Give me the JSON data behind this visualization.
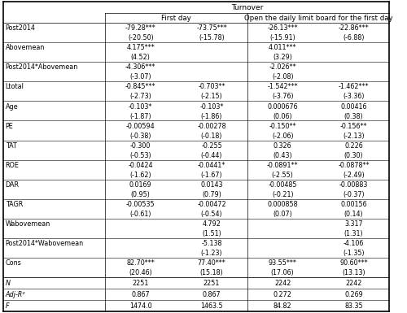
{
  "title": "Turnover",
  "col_group1": "First day",
  "col_group2": "Open the daily limit board for the first day",
  "rows": [
    {
      "label": "Post2014",
      "values": [
        "-79.28***",
        "-73.75***",
        "-26.13***",
        "-22.86***"
      ],
      "is_stat": false
    },
    {
      "label": "",
      "values": [
        "(-20.50)",
        "(-15.78)",
        "(-15.91)",
        "(-6.88)"
      ],
      "is_stat": true
    },
    {
      "label": "Abovemean",
      "values": [
        "4.175***",
        "",
        "4.011***",
        ""
      ],
      "is_stat": false
    },
    {
      "label": "",
      "values": [
        "(4.52)",
        "",
        "(3.29)",
        ""
      ],
      "is_stat": true
    },
    {
      "label": "Post2014*Abovemean",
      "values": [
        "-4.306***",
        "",
        "-2.026**",
        ""
      ],
      "is_stat": false
    },
    {
      "label": "",
      "values": [
        "(-3.07)",
        "",
        "(-2.08)",
        ""
      ],
      "is_stat": true
    },
    {
      "label": "Ltotal",
      "values": [
        "-0.845***",
        "-0.703**",
        "-1.542***",
        "-1.462***"
      ],
      "is_stat": false
    },
    {
      "label": "",
      "values": [
        "(-2.73)",
        "(-2.15)",
        "(-3.76)",
        "(-3.36)"
      ],
      "is_stat": true
    },
    {
      "label": "Age",
      "values": [
        "-0.103*",
        "-0.103*",
        "0.000676",
        "0.00416"
      ],
      "is_stat": false
    },
    {
      "label": "",
      "values": [
        "(-1.87)",
        "(-1.86)",
        "(0.06)",
        "(0.38)"
      ],
      "is_stat": true
    },
    {
      "label": "PE",
      "values": [
        "-0.00594",
        "-0.00278",
        "-0.150**",
        "-0.156**"
      ],
      "is_stat": false
    },
    {
      "label": "",
      "values": [
        "(-0.38)",
        "(-0.18)",
        "(-2.06)",
        "(-2.13)"
      ],
      "is_stat": true
    },
    {
      "label": "TAT",
      "values": [
        "-0.300",
        "-0.255",
        "0.326",
        "0.226"
      ],
      "is_stat": false
    },
    {
      "label": "",
      "values": [
        "(-0.53)",
        "(-0.44)",
        "(0.43)",
        "(0.30)"
      ],
      "is_stat": true
    },
    {
      "label": "ROE",
      "values": [
        "-0.0424",
        "-0.0441*",
        "-0.0891**",
        "-0.0878**"
      ],
      "is_stat": false
    },
    {
      "label": "",
      "values": [
        "(-1.62)",
        "(-1.67)",
        "(-2.55)",
        "(-2.49)"
      ],
      "is_stat": true
    },
    {
      "label": "DAR",
      "values": [
        "0.0169",
        "0.0143",
        "-0.00485",
        "-0.00883"
      ],
      "is_stat": false
    },
    {
      "label": "",
      "values": [
        "(0.95)",
        "(0.79)",
        "(-0.21)",
        "(-0.37)"
      ],
      "is_stat": true
    },
    {
      "label": "TAGR",
      "values": [
        "-0.00535",
        "-0.00472",
        "0.000858",
        "0.00156"
      ],
      "is_stat": false
    },
    {
      "label": "",
      "values": [
        "(-0.61)",
        "(-0.54)",
        "(0.07)",
        "(0.14)"
      ],
      "is_stat": true
    },
    {
      "label": "Wabovemean",
      "values": [
        "",
        "4.792",
        "",
        "3.317"
      ],
      "is_stat": false
    },
    {
      "label": "",
      "values": [
        "",
        "(1.51)",
        "",
        "(1.31)"
      ],
      "is_stat": true
    },
    {
      "label": "Post2014*Wabovemean",
      "values": [
        "",
        "-5.138",
        "",
        "-4.106"
      ],
      "is_stat": false
    },
    {
      "label": "",
      "values": [
        "",
        "(-1.23)",
        "",
        "(-1.35)"
      ],
      "is_stat": true
    },
    {
      "label": "Cons",
      "values": [
        "82.70***",
        "77.40***",
        "93.55***",
        "90.60***"
      ],
      "is_stat": false
    },
    {
      "label": "",
      "values": [
        "(20.46)",
        "(15.18)",
        "(17.06)",
        "(13.13)"
      ],
      "is_stat": true
    },
    {
      "label": "N",
      "values": [
        "2251",
        "2251",
        "2242",
        "2242"
      ],
      "is_stat": false,
      "is_bottom": true
    },
    {
      "label": "Adj-R²",
      "values": [
        "0.867",
        "0.867",
        "0.272",
        "0.269"
      ],
      "is_stat": false,
      "is_bottom": true
    },
    {
      "label": "F",
      "values": [
        "1474.0",
        "1463.5",
        "84.82",
        "83.35"
      ],
      "is_stat": false,
      "is_bottom": true
    }
  ],
  "background_color": "#ffffff",
  "line_color": "#000000",
  "font_size": 5.8,
  "header_font_size": 6.2,
  "title_font_size": 6.5
}
